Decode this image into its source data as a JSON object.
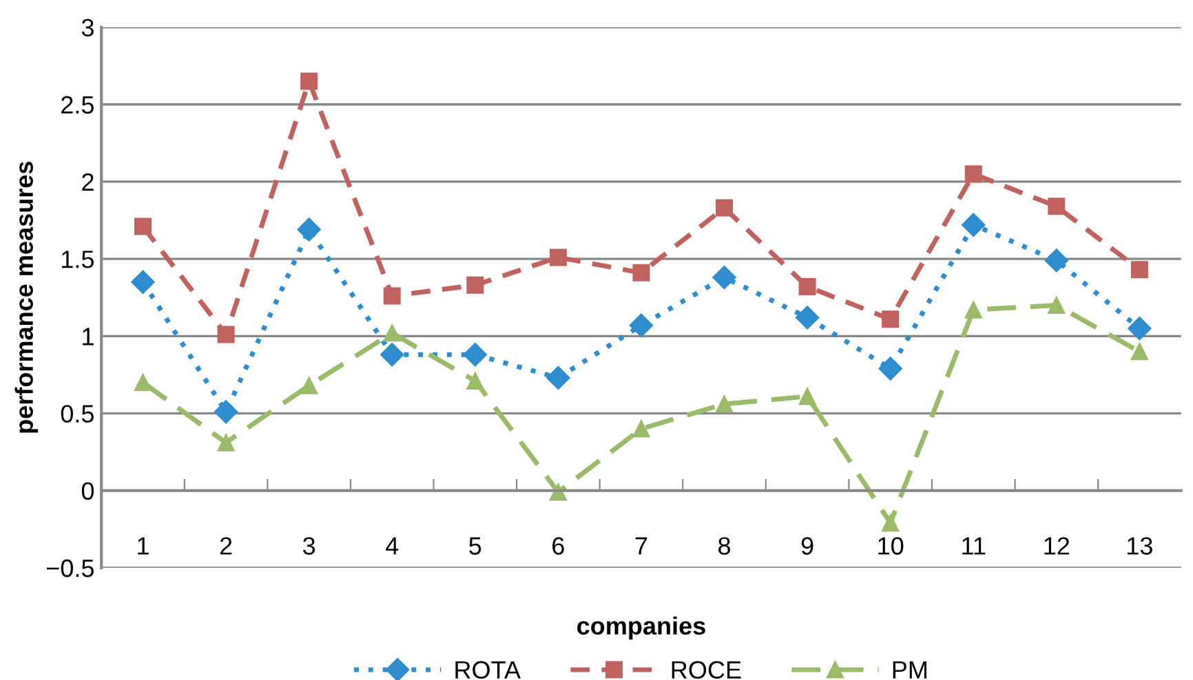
{
  "chart_data": {
    "type": "line",
    "xlabel": "companies",
    "ylabel": "performance measures",
    "categories": [
      "1",
      "2",
      "3",
      "4",
      "5",
      "6",
      "7",
      "8",
      "9",
      "10",
      "11",
      "12",
      "13"
    ],
    "ylim": [
      -0.5,
      3
    ],
    "yticks": [
      {
        "value": -0.5,
        "label": "−0.5"
      },
      0,
      0.5,
      1,
      1.5,
      2,
      2.5,
      3
    ],
    "grid": "y",
    "legend": "bottom",
    "series": [
      {
        "name": "ROTA",
        "color": "#2e8ccf",
        "marker": "diamond",
        "line_style": "dotted",
        "values": [
          1.35,
          0.51,
          1.69,
          0.88,
          0.88,
          0.73,
          1.07,
          1.38,
          1.12,
          0.79,
          1.72,
          1.49,
          1.05
        ]
      },
      {
        "name": "ROCE",
        "color": "#c0625f",
        "marker": "square",
        "line_style": "dashed",
        "values": [
          1.71,
          1.01,
          2.65,
          1.26,
          1.33,
          1.51,
          1.41,
          1.83,
          1.32,
          1.11,
          2.05,
          1.84,
          1.43
        ]
      },
      {
        "name": "PM",
        "color": "#9bbb6a",
        "marker": "triangle",
        "line_style": "longdash",
        "values": [
          0.7,
          0.31,
          0.68,
          1.02,
          0.71,
          -0.01,
          0.4,
          0.56,
          0.61,
          -0.21,
          1.17,
          1.2,
          0.9
        ]
      }
    ]
  }
}
